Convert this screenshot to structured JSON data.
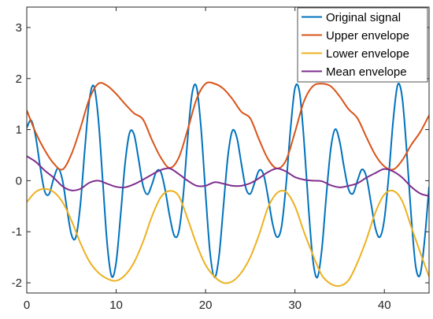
{
  "chart_data": {
    "type": "line",
    "xlim": [
      0,
      45
    ],
    "ylim": [
      -2.2,
      3.4
    ],
    "xticks": [
      0,
      10,
      20,
      30,
      40
    ],
    "yticks": [
      -2,
      -1,
      0,
      1,
      2,
      3
    ],
    "x_tick_labels": [
      "0",
      "10",
      "20",
      "30",
      "40"
    ],
    "y_tick_labels": [
      "-2",
      "-1",
      "0",
      "1",
      "2",
      "3"
    ],
    "grid": false,
    "legend_position": "top-right",
    "series": [
      {
        "name": "Original signal",
        "color": "#0072BD",
        "x": [
          0,
          0.5,
          1,
          1.5,
          2,
          2.5,
          3,
          3.5,
          4,
          4.5,
          5,
          5.5,
          6,
          6.5,
          7,
          7.5,
          8,
          8.5,
          9,
          9.5,
          10,
          10.5,
          11,
          11.5,
          12,
          12.5,
          13,
          13.5,
          14,
          14.5,
          15,
          15.5,
          16,
          16.5,
          17,
          17.5,
          18,
          18.5,
          19,
          19.5,
          20,
          20.5,
          21,
          21.5,
          22,
          22.5,
          23,
          23.5,
          24,
          24.5,
          25,
          25.5,
          26,
          26.5,
          27,
          27.5,
          28,
          28.5,
          29,
          29.5,
          30,
          30.5,
          31,
          31.5,
          32,
          32.5,
          33,
          33.5,
          34,
          34.5,
          35,
          35.5,
          36,
          36.5,
          37,
          37.5,
          38,
          38.5,
          39,
          39.5,
          40,
          40.5,
          41,
          41.5,
          42,
          42.5,
          43,
          43.5,
          44,
          44.5,
          45
        ],
        "y": [
          1.036,
          1.182,
          0.86,
          0.271,
          -0.206,
          -0.261,
          0.036,
          0.241,
          0.006,
          -0.555,
          -1.06,
          -1.101,
          -0.465,
          0.626,
          1.579,
          1.853,
          1.222,
          -0.011,
          -1.247,
          -1.875,
          -1.598,
          -0.671,
          0.341,
          0.937,
          0.905,
          0.427,
          -0.094,
          -0.267,
          -0.076,
          0.178,
          0.169,
          -0.198,
          -0.707,
          -1.077,
          -1.002,
          -0.297,
          0.829,
          1.713,
          1.829,
          1.016,
          -0.25,
          -1.406,
          -1.893,
          -1.487,
          -0.502,
          0.478,
          0.978,
          0.845,
          0.337,
          -0.14,
          -0.259,
          -0.033,
          0.205,
          0.113,
          -0.331,
          -0.845,
          -1.106,
          -0.899,
          -0.089,
          1.001,
          1.811,
          1.746,
          0.808,
          -0.48,
          -1.544,
          -1.895,
          -1.355,
          -0.309,
          0.617,
          1.008,
          0.768,
          0.255,
          -0.17,
          -0.25,
          0.006,
          0.221,
          0.067,
          -0.432,
          -0.931,
          -1.104,
          -0.755,
          0.127,
          1.203,
          1.882,
          1.623,
          0.578,
          -0.689,
          -1.671,
          -1.841,
          -1.164,
          -0.117
        ]
      },
      {
        "name": "Upper envelope",
        "color": "#D95319",
        "x": [
          0,
          1,
          2,
          3,
          4,
          5,
          6,
          7,
          8,
          9,
          10,
          11,
          12,
          13,
          14,
          15,
          16,
          17,
          18,
          19,
          20,
          21,
          22,
          23,
          24,
          25,
          26,
          27,
          28,
          29,
          30,
          31,
          32,
          33,
          34,
          35,
          36,
          37,
          38,
          39,
          40,
          41,
          42,
          43,
          44,
          45
        ],
        "y": [
          1.38,
          0.94,
          0.6,
          0.34,
          0.22,
          0.52,
          1.03,
          1.6,
          1.9,
          1.86,
          1.7,
          1.5,
          1.32,
          1.2,
          0.8,
          0.45,
          0.25,
          0.45,
          1.0,
          1.6,
          1.9,
          1.9,
          1.8,
          1.6,
          1.35,
          1.22,
          0.8,
          0.42,
          0.24,
          0.4,
          0.95,
          1.55,
          1.85,
          1.9,
          1.85,
          1.65,
          1.4,
          1.22,
          0.85,
          0.5,
          0.28,
          0.22,
          0.4,
          0.7,
          0.95,
          1.28
        ]
      },
      {
        "name": "Lower envelope",
        "color": "#EDB120",
        "x": [
          0,
          1,
          2,
          3,
          4,
          5,
          6,
          7,
          8,
          9,
          10,
          11,
          12,
          13,
          14,
          15,
          16,
          17,
          18,
          19,
          20,
          21,
          22,
          23,
          24,
          25,
          26,
          27,
          28,
          29,
          30,
          31,
          32,
          33,
          34,
          35,
          36,
          37,
          38,
          39,
          40,
          41,
          42,
          43,
          44,
          45
        ],
        "y": [
          -0.42,
          -0.22,
          -0.16,
          -0.22,
          -0.42,
          -0.78,
          -1.22,
          -1.58,
          -1.8,
          -1.92,
          -1.96,
          -1.85,
          -1.6,
          -1.2,
          -0.7,
          -0.32,
          -0.2,
          -0.3,
          -0.75,
          -1.25,
          -1.65,
          -1.88,
          -2.0,
          -1.97,
          -1.8,
          -1.5,
          -1.05,
          -0.52,
          -0.24,
          -0.22,
          -0.5,
          -1.0,
          -1.45,
          -1.85,
          -2.02,
          -2.06,
          -1.95,
          -1.6,
          -1.15,
          -0.62,
          -0.27,
          -0.2,
          -0.4,
          -0.9,
          -1.4,
          -1.88
        ]
      },
      {
        "name": "Mean envelope",
        "color": "#7E2F8E",
        "x": [
          0,
          1,
          2,
          3,
          4,
          5,
          6,
          7,
          8,
          9,
          10,
          11,
          12,
          13,
          14,
          15,
          16,
          17,
          18,
          19,
          20,
          21,
          22,
          23,
          24,
          25,
          26,
          27,
          28,
          29,
          30,
          31,
          32,
          33,
          34,
          35,
          36,
          37,
          38,
          39,
          40,
          41,
          42,
          43,
          44,
          45
        ],
        "y": [
          0.48,
          0.37,
          0.2,
          0.06,
          -0.11,
          -0.19,
          -0.16,
          -0.04,
          0.0,
          -0.06,
          -0.12,
          -0.13,
          -0.07,
          0.02,
          0.12,
          0.21,
          0.24,
          0.13,
          0.0,
          -0.1,
          -0.1,
          -0.03,
          -0.06,
          -0.1,
          -0.1,
          -0.05,
          0.05,
          0.17,
          0.24,
          0.18,
          0.07,
          0.02,
          0.0,
          -0.01,
          -0.09,
          -0.13,
          -0.1,
          -0.05,
          0.06,
          0.15,
          0.23,
          0.18,
          0.06,
          -0.12,
          -0.25,
          -0.3
        ]
      }
    ]
  }
}
